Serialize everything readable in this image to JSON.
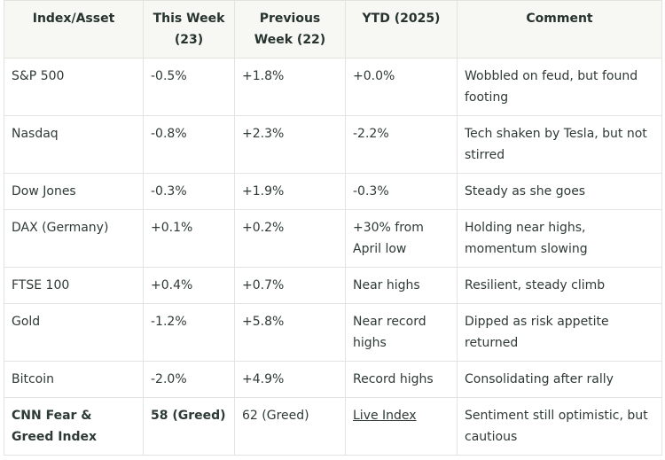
{
  "headers": [
    "Index/Asset",
    "This Week (23)",
    "Previous Week (22)",
    "YTD (2025)",
    "Comment"
  ],
  "rows": [
    {
      "asset": "S&P 500",
      "this_week": "-0.5%",
      "prev_week": "+1.8%",
      "ytd": "+0.0%",
      "comment": "Wobbled on feud, but found footing"
    },
    {
      "asset": "Nasdaq",
      "this_week": "-0.8%",
      "prev_week": "+2.3%",
      "ytd": "-2.2%",
      "comment": "Tech shaken by Tesla, but not stirred"
    },
    {
      "asset": "Dow Jones",
      "this_week": "-0.3%",
      "prev_week": "+1.9%",
      "ytd": "-0.3%",
      "comment": "Steady as she goes"
    },
    {
      "asset": "DAX (Germany)",
      "this_week": "+0.1%",
      "prev_week": "+0.2%",
      "ytd": "+30% from April low",
      "comment": "Holding near highs, momentum slowing"
    },
    {
      "asset": "FTSE 100",
      "this_week": "+0.4%",
      "prev_week": "+0.7%",
      "ytd": "Near highs",
      "comment": "Resilient, steady climb"
    },
    {
      "asset": "Gold",
      "this_week": "-1.2%",
      "prev_week": "+5.8%",
      "ytd": "Near record highs",
      "comment": "Dipped as risk appetite returned"
    },
    {
      "asset": "Bitcoin",
      "this_week": "-2.0%",
      "prev_week": "+4.9%",
      "ytd": "Record highs",
      "comment": "Consolidating after rally"
    },
    {
      "asset": "CNN Fear & Greed Index",
      "this_week": "58 (Greed)",
      "prev_week": "62 (Greed)",
      "ytd": "Live Index",
      "comment": "Sentiment still optimistic, but cautious"
    }
  ]
}
